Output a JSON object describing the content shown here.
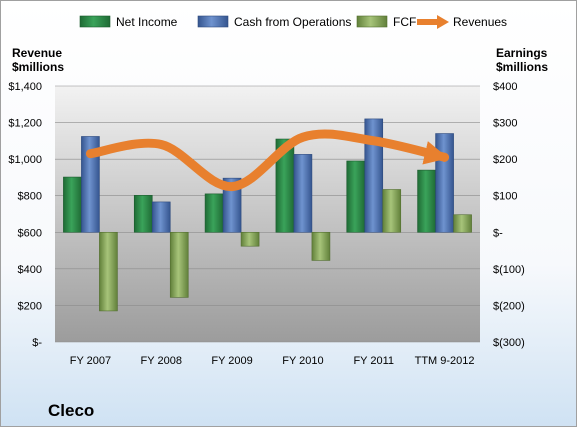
{
  "chart_data": {
    "type": "bar",
    "title": "",
    "company": "Cleco",
    "categories": [
      "FY 2007",
      "FY 2008",
      "FY 2009",
      "FY 2010",
      "FY 2011",
      "TTM 9-2012"
    ],
    "left_axis": {
      "label_line1": "Revenue",
      "label_line2": "$millions",
      "range": [
        0,
        1400
      ],
      "ticks": [
        0,
        200,
        400,
        600,
        800,
        1000,
        1200,
        1400
      ],
      "tick_labels": [
        "$-",
        "$200",
        "$400",
        "$600",
        "$800",
        "$1,000",
        "$1,200",
        "$1,400"
      ]
    },
    "right_axis": {
      "label_line1": "Earnings",
      "label_line2": "$millions",
      "range": [
        -300,
        400
      ],
      "ticks": [
        -300,
        -200,
        -100,
        0,
        100,
        200,
        300,
        400
      ],
      "tick_labels": [
        "$(300)",
        "$(200)",
        "$(100)",
        "$-",
        "$100",
        "$200",
        "$300",
        "$400"
      ]
    },
    "series": [
      {
        "name": "Net Income",
        "axis": "right",
        "kind": "bar",
        "values": [
          151,
          101,
          105,
          255,
          195,
          170
        ]
      },
      {
        "name": "Cash from Operations",
        "axis": "right",
        "kind": "bar",
        "values": [
          262,
          83,
          148,
          213,
          310,
          270
        ]
      },
      {
        "name": "FCF",
        "axis": "right",
        "kind": "bar",
        "values": [
          -215,
          -178,
          -38,
          -77,
          117,
          48
        ]
      },
      {
        "name": "Revenues",
        "axis": "left",
        "kind": "line",
        "values": [
          1030,
          1080,
          850,
          1120,
          1100,
          1010
        ]
      }
    ],
    "legend_placement": "top",
    "colors": {
      "Net Income": "#2e8b47",
      "Cash from Operations": "#4f73b0",
      "FCF": "#8aab5a",
      "Revenues": "#e8802e"
    }
  }
}
